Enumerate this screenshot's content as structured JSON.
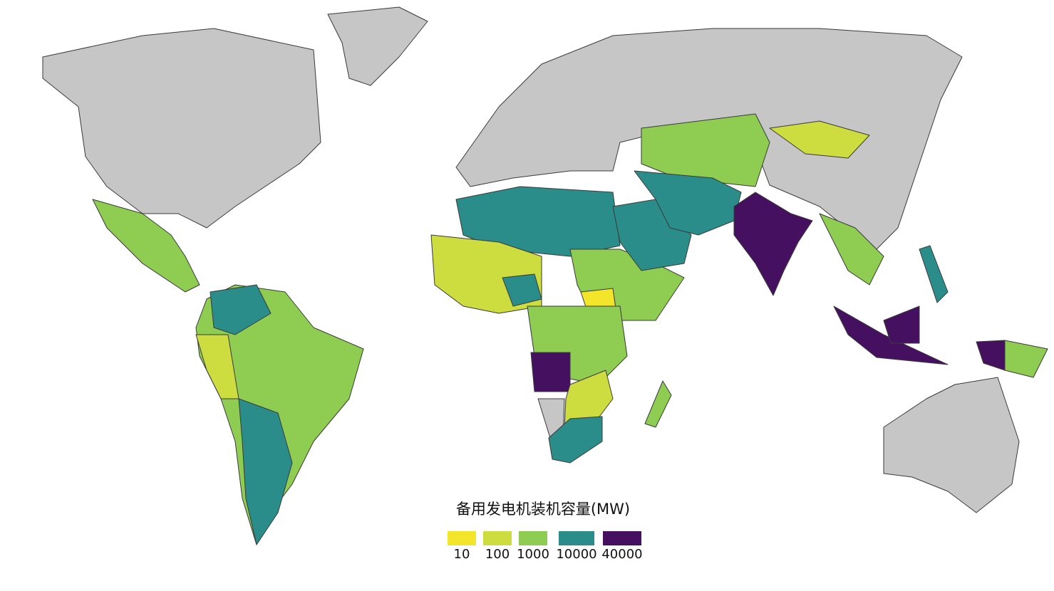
{
  "legend": {
    "title": "备用发电机装机容量(MW)",
    "items": [
      {
        "value": 10,
        "color": "#f3e52a"
      },
      {
        "value": 100,
        "color": "#cddc3e"
      },
      {
        "value": 1000,
        "color": "#8fcc52"
      },
      {
        "value": 10000,
        "color": "#2a8d8a"
      },
      {
        "value": 40000,
        "color": "#45105f"
      }
    ]
  }
}
